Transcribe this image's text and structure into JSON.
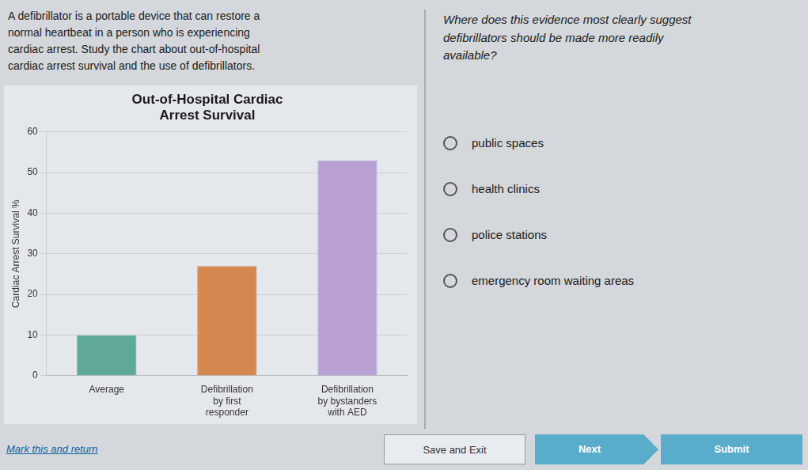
{
  "chart_data": {
    "type": "bar",
    "title": "Out-of-Hospital Cardiac\nArrest Survival",
    "categories": [
      "Average",
      "Defibrillation\nby first\nresponder",
      "Defibrillation\nby bystanders\nwith AED"
    ],
    "values": [
      10,
      27,
      53
    ],
    "colors": [
      "#5fa89a",
      "#d4874e",
      "#b8a0d4"
    ],
    "ylabel": "Cardiac Arrest Survival %",
    "ylim": [
      0,
      60
    ],
    "yticks": [
      0,
      10,
      20,
      30,
      40,
      50,
      60
    ],
    "grid": true,
    "annotations": [
      "A defibrillator is a portable device that can restore a",
      "normal heartbeat in a person who is experiencing",
      "cardiac arrest. Study the chart about out-of-hospital",
      "cardiac arrest survival and the use of defibrillators.",
      "Where does this evidence most clearly suggest",
      "defibrillators should be made more readily",
      "available?",
      "public spaces",
      "health clinics",
      "police stations",
      "emergency room waiting areas",
      "Mark this and return",
      "Save and Exit",
      "Next",
      "Submit"
    ]
  }
}
